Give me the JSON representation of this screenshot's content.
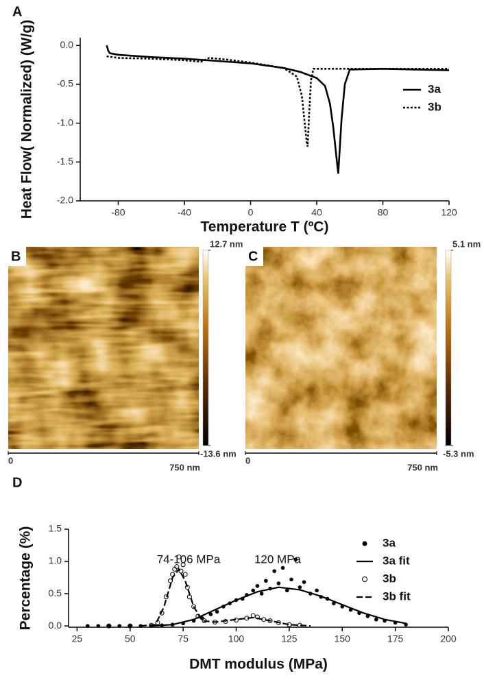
{
  "chart_data": [
    {
      "type": "line",
      "panel": "A",
      "x_label": "Temperature T (ºC)",
      "y_label": "Heat Flow( Normalized) (W/g)",
      "xlim": [
        -103,
        120
      ],
      "xticks": [
        -80,
        -40,
        0,
        40,
        80,
        120
      ],
      "ylim": [
        -2.0,
        0.1
      ],
      "yticks": [
        {
          "value": 0,
          "label": "0.0"
        },
        -0.5,
        {
          "value": -1,
          "label": "-1.0"
        },
        -1.5,
        {
          "value": -2,
          "label": "-2.0"
        }
      ],
      "legend": "right",
      "series": [
        {
          "name": "3a",
          "color": "#000000",
          "dash": false,
          "x": [
            -87,
            -86,
            -85,
            -80,
            -60,
            -40,
            -20,
            0,
            20,
            30,
            40,
            45,
            48,
            50,
            52,
            53,
            54,
            55,
            57,
            60,
            80,
            120
          ],
          "values": [
            0,
            -0.07,
            -0.1,
            -0.12,
            -0.15,
            -0.17,
            -0.2,
            -0.23,
            -0.29,
            -0.34,
            -0.42,
            -0.52,
            -0.75,
            -1.05,
            -1.45,
            -1.65,
            -1.3,
            -0.95,
            -0.5,
            -0.31,
            -0.3,
            -0.32
          ]
        },
        {
          "name": "3b",
          "color": "#000000",
          "dash": true,
          "x": [
            -87,
            -80,
            -60,
            -40,
            -30,
            -25,
            -15,
            0,
            20,
            28,
            31,
            33,
            34,
            34.5,
            35.5,
            36.5,
            38,
            60,
            120
          ],
          "values": [
            -0.14,
            -0.16,
            -0.17,
            -0.19,
            -0.21,
            -0.16,
            -0.18,
            -0.22,
            -0.29,
            -0.4,
            -0.65,
            -1.05,
            -1.25,
            -1.3,
            -0.85,
            -0.45,
            -0.3,
            -0.3,
            -0.3
          ]
        }
      ]
    },
    {
      "type": "image",
      "panel": "B",
      "zlim": [
        -13.6,
        12.7
      ],
      "zticks": [
        {
          "value": 12.7,
          "label": "12.7 nm"
        },
        {
          "value": -13.6,
          "label": "-13.6 nm"
        }
      ],
      "xlim": [
        0,
        750
      ],
      "xticks": [
        0,
        {
          "value": 750,
          "label": "750 nm"
        }
      ]
    },
    {
      "type": "image",
      "panel": "C",
      "zlim": [
        -5.3,
        5.1
      ],
      "zticks": [
        {
          "value": 5.1,
          "label": "5.1 nm"
        },
        {
          "value": -5.3,
          "label": "-5.3 nm"
        }
      ],
      "xlim": [
        0,
        750
      ],
      "xticks": [
        0,
        {
          "value": 750,
          "label": "750 nm"
        }
      ]
    },
    {
      "type": "scatter",
      "panel": "D",
      "x_label": "DMT modulus (MPa)",
      "y_label": "Percentage (%)",
      "xlim": [
        21,
        200
      ],
      "xticks": [
        25,
        50,
        75,
        100,
        125,
        150,
        175,
        200
      ],
      "ylim": [
        -0.02,
        1.5
      ],
      "yticks": [
        {
          "value": 0,
          "label": "0.0"
        },
        0.5,
        {
          "value": 1,
          "label": "1.0"
        },
        1.5
      ],
      "legend": "upper right",
      "annotations": [
        "74-106 MPa",
        "120 MPa"
      ],
      "series": [
        {
          "name": "3a",
          "color": "#000000",
          "marker": "dot",
          "x": [
            30,
            35,
            40,
            45,
            50,
            55,
            60,
            65,
            70,
            75,
            80,
            84,
            88,
            91,
            94,
            97,
            100,
            103,
            105,
            108,
            110,
            112,
            114,
            116,
            118,
            120,
            122,
            124,
            126,
            128,
            130,
            132,
            135,
            138,
            140,
            143,
            146,
            150,
            154,
            158,
            162,
            166,
            170,
            175,
            180
          ],
          "values": [
            0,
            0,
            0,
            0,
            0,
            0,
            0,
            0.01,
            0.02,
            0.04,
            0.08,
            0.12,
            0.18,
            0.22,
            0.3,
            0.35,
            0.4,
            0.42,
            0.48,
            0.55,
            0.62,
            0.5,
            0.7,
            0.58,
            0.85,
            0.66,
            0.9,
            0.55,
            0.72,
            1.03,
            0.6,
            0.68,
            0.5,
            0.55,
            0.45,
            0.42,
            0.35,
            0.3,
            0.25,
            0.2,
            0.15,
            0.1,
            0.08,
            0.05,
            0.02
          ]
        },
        {
          "name": "3a fit",
          "color": "#000000",
          "marker": "line",
          "x": [
            60,
            70,
            80,
            90,
            100,
            110,
            120,
            130,
            140,
            150,
            160,
            170,
            180
          ],
          "values": [
            0,
            0.02,
            0.1,
            0.25,
            0.4,
            0.53,
            0.6,
            0.56,
            0.46,
            0.33,
            0.2,
            0.1,
            0.04
          ]
        },
        {
          "name": "3b",
          "color": "#000000",
          "marker": "circle",
          "x": [
            40,
            50,
            60,
            63,
            65,
            67,
            69,
            70,
            71,
            72,
            73,
            74,
            75,
            76,
            77,
            78,
            80,
            82,
            85,
            90,
            95,
            100,
            105,
            108,
            110,
            113,
            116,
            120,
            125,
            130
          ],
          "values": [
            0,
            0,
            0.01,
            0.05,
            0.2,
            0.45,
            0.7,
            0.8,
            0.88,
            0.92,
            1.07,
            0.85,
            0.95,
            0.8,
            0.6,
            0.45,
            0.3,
            0.15,
            0.08,
            0.06,
            0.07,
            0.09,
            0.12,
            0.16,
            0.14,
            0.1,
            0.08,
            0.05,
            0.02,
            0.01
          ]
        },
        {
          "name": "3b fit",
          "color": "#000000",
          "marker": "dash",
          "x": [
            55,
            62,
            66,
            70,
            73,
            76,
            80,
            84,
            90,
            100,
            108,
            116,
            125,
            135
          ],
          "values": [
            0,
            0.02,
            0.3,
            0.75,
            0.88,
            0.7,
            0.3,
            0.08,
            0.06,
            0.1,
            0.13,
            0.08,
            0.02,
            0
          ]
        }
      ]
    }
  ]
}
